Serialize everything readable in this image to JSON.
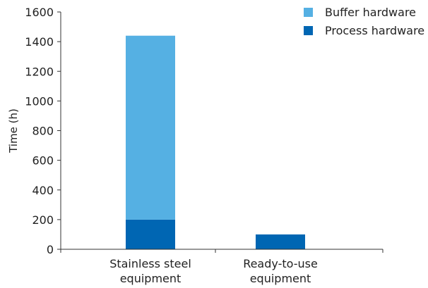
{
  "chart_data": {
    "type": "bar",
    "stacked": true,
    "title": "",
    "xlabel": "",
    "ylabel": "Time (h)",
    "ylim": [
      0,
      1600
    ],
    "yticks": [
      0,
      200,
      400,
      600,
      800,
      1000,
      1200,
      1400,
      1600
    ],
    "grid": false,
    "legend_position": "top-right",
    "categories": [
      [
        "Stainless steel",
        "equipment"
      ],
      [
        "Ready-to-use",
        "equipment"
      ]
    ],
    "series": [
      {
        "name": "Process hardware",
        "color": "#0066b3",
        "values": [
          200,
          100
        ]
      },
      {
        "name": "Buffer hardware",
        "color": "#55b0e3",
        "values": [
          1240,
          0
        ]
      }
    ],
    "legend_order": [
      "Buffer hardware",
      "Process hardware"
    ]
  }
}
